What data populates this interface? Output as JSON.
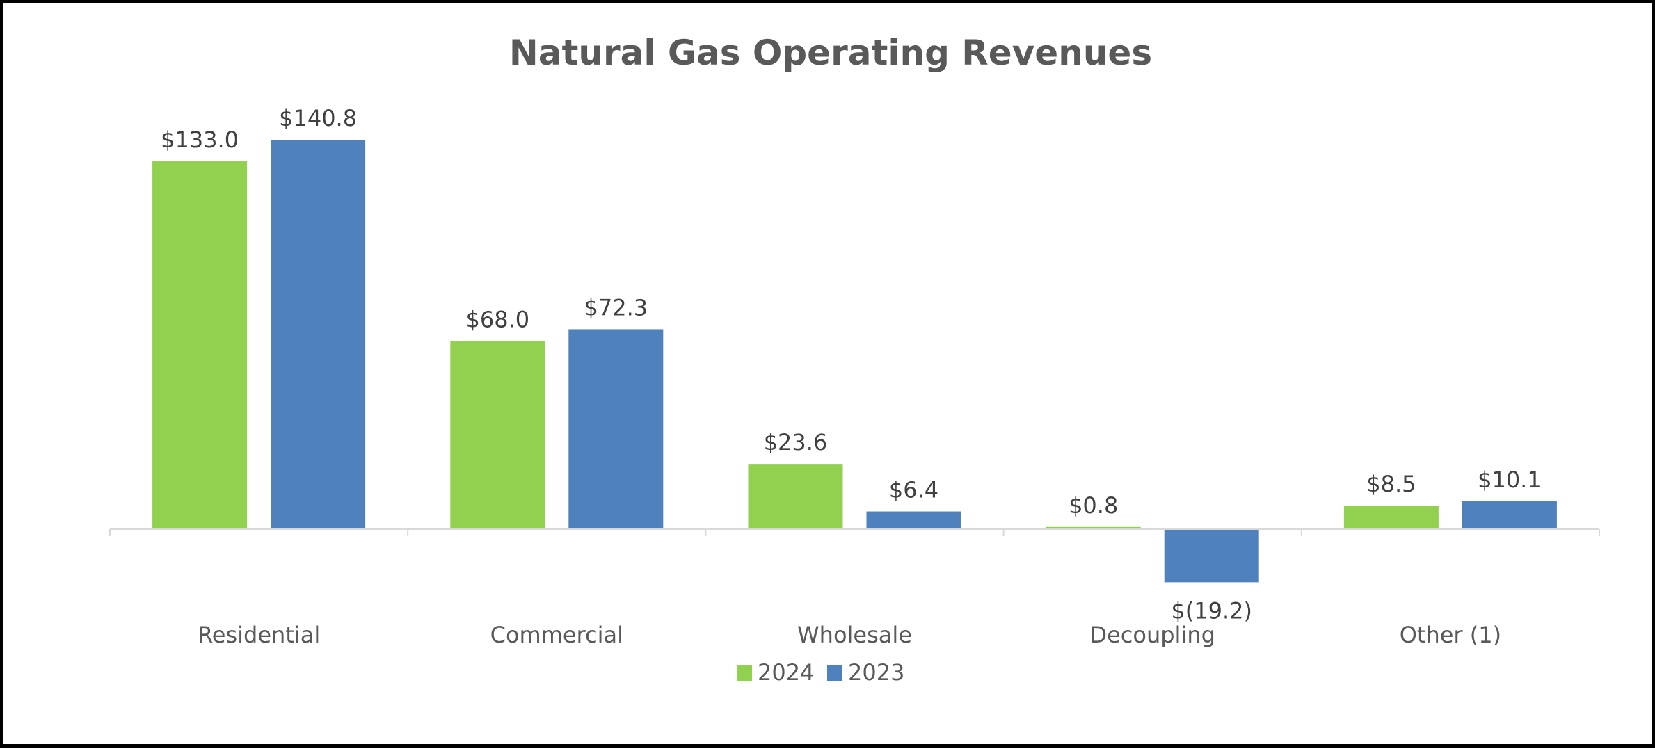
{
  "chart_data": {
    "type": "bar",
    "title": "Natural Gas Operating Revenues",
    "categories": [
      "Residential",
      "Commercial",
      "Wholesale",
      "Decoupling",
      "Other (1)"
    ],
    "series": [
      {
        "name": "2024",
        "color": "#92D050",
        "values": [
          133.0,
          68.0,
          23.6,
          0.8,
          8.5
        ],
        "labels": [
          "$133.0",
          "$68.0",
          "$23.6",
          "$0.8",
          "$8.5"
        ]
      },
      {
        "name": "2023",
        "color": "#4F81BD",
        "values": [
          140.8,
          72.3,
          6.4,
          -19.2,
          10.1
        ],
        "labels": [
          "$140.8",
          "$72.3",
          "$6.4",
          "$(19.2)",
          "$10.1"
        ]
      }
    ],
    "xlabel": "",
    "ylabel": "",
    "ylim": [
      -30,
      150
    ],
    "grid": false,
    "legend": "bottom-center"
  }
}
